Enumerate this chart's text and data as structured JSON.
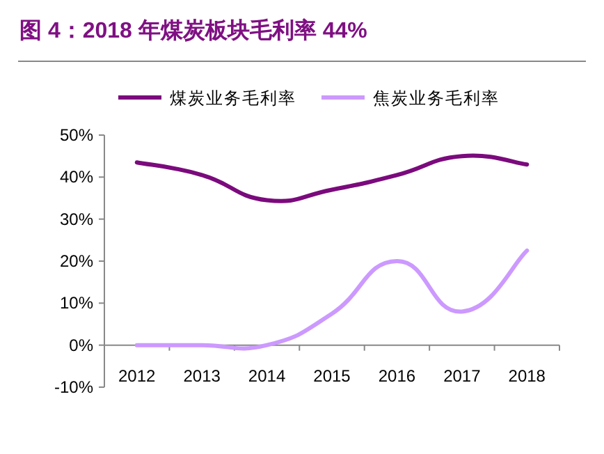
{
  "chart_data": {
    "type": "line",
    "title": "图 4：2018 年煤炭板块毛利率 44%",
    "categories": [
      "2012",
      "2013",
      "2014",
      "2015",
      "2016",
      "2017",
      "2018"
    ],
    "series": [
      {
        "name": "煤炭业务毛利率",
        "color": "#7b0a7d",
        "values": [
          43.5,
          40.5,
          34.5,
          37,
          40.5,
          45,
          43
        ]
      },
      {
        "name": "焦炭业务毛利率",
        "color": "#cc99ff",
        "values": [
          0,
          0,
          0,
          7.5,
          20,
          8,
          22.5
        ]
      }
    ],
    "ylim": [
      -10,
      50
    ],
    "yticks": [
      {
        "value": -10,
        "label": "-10%"
      },
      {
        "value": 0,
        "label": "0%"
      },
      {
        "value": 10,
        "label": "10%"
      },
      {
        "value": 20,
        "label": "20%"
      },
      {
        "value": 30,
        "label": "30%"
      },
      {
        "value": 40,
        "label": "40%"
      },
      {
        "value": 50,
        "label": "50%"
      }
    ],
    "legend": "top",
    "grid": false,
    "marker": "none",
    "line_style": "solid"
  }
}
